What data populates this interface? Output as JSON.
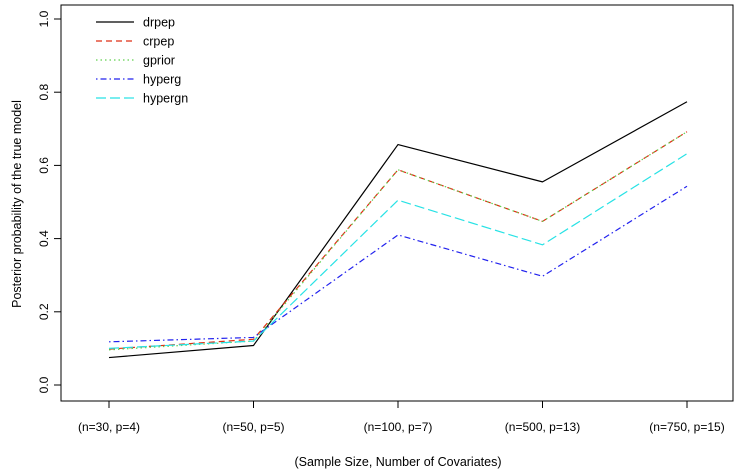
{
  "chart_data": {
    "type": "line",
    "title": "",
    "xlabel": "(Sample Size, Number of Covariates)",
    "ylabel": "Posterior probability of the true model",
    "categories": [
      "(n=30, p=4)",
      "(n=50, p=5)",
      "(n=100, p=7)",
      "(n=500, p=13)",
      "(n=750, p=15)"
    ],
    "ylim": [
      0.0,
      1.0
    ],
    "yticks": [
      "0.0",
      "0.2",
      "0.4",
      "0.6",
      "0.8",
      "1.0"
    ],
    "ytick_values": [
      0.0,
      0.2,
      0.4,
      0.6,
      0.8,
      1.0
    ],
    "grid": false,
    "legend_position": "top-left",
    "series": [
      {
        "name": "drpep",
        "values": [
          0.075,
          0.108,
          0.657,
          0.555,
          0.774
        ],
        "color": "#000000",
        "dash": "solid"
      },
      {
        "name": "crpep",
        "values": [
          0.098,
          0.125,
          0.588,
          0.447,
          0.692
        ],
        "color": "#DF2F14",
        "dash": "dashed"
      },
      {
        "name": "gprior",
        "values": [
          0.096,
          0.12,
          0.588,
          0.447,
          0.692
        ],
        "color": "#61D04F",
        "dash": "dotted"
      },
      {
        "name": "hyperg",
        "values": [
          0.118,
          0.13,
          0.41,
          0.297,
          0.543
        ],
        "color": "#2222EE",
        "dash": "dotdash"
      },
      {
        "name": "hypergn",
        "values": [
          0.1,
          0.12,
          0.505,
          0.383,
          0.632
        ],
        "color": "#28E2E5",
        "dash": "longdash"
      }
    ]
  }
}
